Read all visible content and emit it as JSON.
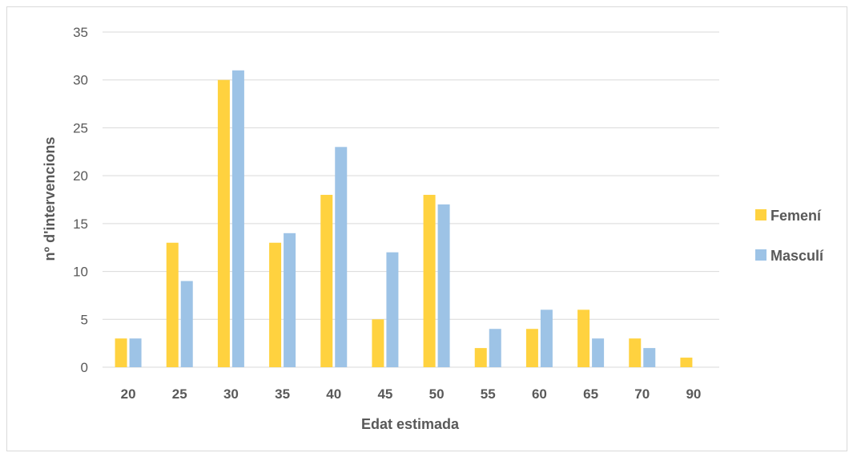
{
  "chart_data": {
    "type": "bar",
    "title": "",
    "xlabel": "Edat estimada",
    "ylabel": "nº d'intervencions",
    "ylim": [
      0,
      35
    ],
    "y_ticks": [
      0,
      5,
      10,
      15,
      20,
      25,
      30,
      35
    ],
    "categories": [
      "20",
      "25",
      "30",
      "35",
      "40",
      "45",
      "50",
      "55",
      "60",
      "65",
      "70",
      "90"
    ],
    "series": [
      {
        "name": "Femení",
        "color": "#FFD23F",
        "values": [
          3,
          13,
          30,
          13,
          18,
          5,
          18,
          2,
          4,
          6,
          3,
          1
        ]
      },
      {
        "name": "Masculí",
        "color": "#9DC3E6",
        "values": [
          3,
          9,
          31,
          14,
          23,
          12,
          17,
          4,
          6,
          3,
          2,
          null
        ]
      }
    ],
    "grid": true,
    "legend_position": "right",
    "colors": {
      "gridline": "#d9d9d9",
      "axis_text": "#595959"
    }
  }
}
